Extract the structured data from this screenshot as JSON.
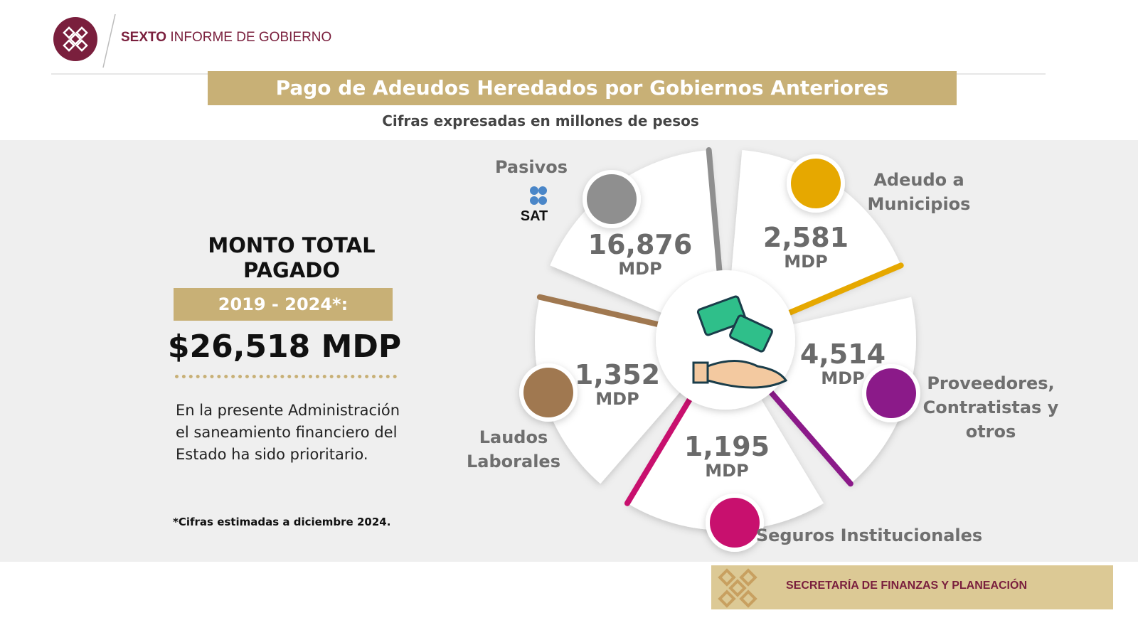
{
  "header": {
    "brand_bold": "SEXTO",
    "brand_rest": "INFORME DE GOBIERNO"
  },
  "title": "Pago de Adeudos Heredados por Gobiernos Anteriores",
  "subtitle": "Cifras expresadas en millones de pesos",
  "total": {
    "heading": "MONTO TOTAL PAGADO",
    "period": "2019 - 2024*:",
    "amount": "$26,518 MDP",
    "description": "En la presente Administración el saneamiento financiero del Estado ha sido prioritario.",
    "footnote": "*Cifras estimadas a diciembre 2024."
  },
  "segments": [
    {
      "label": "Pasivos",
      "logo": "SAT",
      "amount": "16,876",
      "unit": "MDP"
    },
    {
      "label": "Adeudo a Municipios",
      "amount": "2,581",
      "unit": "MDP"
    },
    {
      "label": "Proveedores, Contratistas y otros",
      "amount": "4,514",
      "unit": "MDP"
    },
    {
      "label": "Seguros Institucionales",
      "amount": "1,195",
      "unit": "MDP"
    },
    {
      "label": "Laudos Laborales",
      "amount": "1,352",
      "unit": "MDP"
    }
  ],
  "footer": "SECRETARÍA DE FINANZAS Y PLANEACIÓN"
}
